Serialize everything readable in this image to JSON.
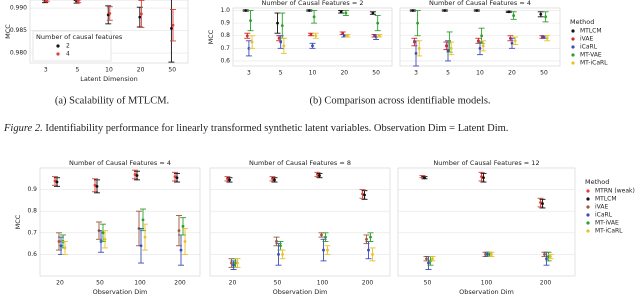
{
  "chart_data": [
    {
      "type": "errorbar",
      "ylabel": "MCC",
      "xlabel": "Latent Dimension",
      "categories": [
        "3",
        "5",
        "10",
        "20",
        "50"
      ],
      "ylim": [
        0.9778,
        0.9918
      ],
      "yticks": [
        {
          "value": 0.99,
          "label": "0.990"
        },
        0.985,
        {
          "value": 0.98,
          "label": "0.980"
        }
      ],
      "grid": true,
      "legend": "lower left",
      "legend_title": "Number of causal features",
      "series": [
        {
          "name": "2",
          "color": "#111111",
          "values": [
            0.9915,
            0.9914,
            0.9885,
            0.988,
            0.9855
          ],
          "errors": [
            0.0003,
            0.0003,
            0.002,
            0.0022,
            0.0075
          ]
        },
        {
          "name": "4",
          "color": "#e0403a",
          "values": [
            0.9916,
            0.9915,
            0.9888,
            0.9887,
            0.9862
          ],
          "errors": [
            0.0002,
            0.0003,
            0.0015,
            0.003,
            0.0035
          ]
        }
      ]
    },
    {
      "type": "errorbar",
      "title": "Number of Causal Features = 2",
      "ylabel": "MCC",
      "categories": [
        "3",
        "5",
        "10",
        "20",
        "50"
      ],
      "ylim": [
        0.56,
        1.02
      ],
      "yticks": [
        {
          "value": 1,
          "label": "1.0"
        },
        0.9,
        0.8,
        0.7,
        0.6
      ],
      "grid": true,
      "series": [
        {
          "name": "MTLCM",
          "color": "#111111",
          "values": [
            1.0,
            0.9,
            1.0,
            0.99,
            0.98
          ],
          "errors": [
            0.005,
            0.08,
            0.005,
            0.01,
            0.01
          ]
        },
        {
          "name": "iVAE",
          "color": "#d62728",
          "values": [
            0.8,
            0.78,
            0.81,
            0.82,
            0.8
          ],
          "errors": [
            0.02,
            0.02,
            0.01,
            0.01,
            0.01
          ]
        },
        {
          "name": "iCaRL",
          "color": "#3b4cc0",
          "values": [
            0.7,
            0.75,
            0.72,
            0.8,
            0.79
          ],
          "errors": [
            0.06,
            0.05,
            0.02,
            0.01,
            0.02
          ]
        },
        {
          "name": "MT-VAE",
          "color": "#2ca02c",
          "values": [
            0.92,
            0.88,
            0.95,
            0.98,
            0.9
          ],
          "errors": [
            0.08,
            0.1,
            0.05,
            0.02,
            0.06
          ]
        },
        {
          "name": "MT-iCaRL",
          "color": "#e6c229",
          "values": [
            0.75,
            0.72,
            0.8,
            0.8,
            0.8
          ],
          "errors": [
            0.05,
            0.06,
            0.02,
            0.01,
            0.01
          ]
        }
      ]
    },
    {
      "type": "errorbar",
      "title": "Number of Causal Features = 4",
      "sharey": true,
      "categories": [
        "3",
        "5",
        "10",
        "20",
        "50"
      ],
      "ylim": [
        0.56,
        1.02
      ],
      "yticks": [
        {
          "value": 1,
          "label": "1.0"
        },
        0.9,
        0.8,
        0.7,
        0.6
      ],
      "grid": true,
      "legend": "right",
      "legend_title": "Method",
      "series": [
        {
          "name": "MTLCM",
          "color": "#111111",
          "values": [
            1.0,
            1.0,
            1.0,
            0.99,
            0.97
          ],
          "errors": [
            0.005,
            0.005,
            0.005,
            0.005,
            0.02
          ]
        },
        {
          "name": "iVAE",
          "color": "#d62728",
          "values": [
            0.75,
            0.72,
            0.76,
            0.78,
            0.79
          ],
          "errors": [
            0.03,
            0.03,
            0.02,
            0.02,
            0.01
          ]
        },
        {
          "name": "iCaRL",
          "color": "#3b4cc0",
          "values": [
            0.66,
            0.68,
            0.7,
            0.74,
            0.79
          ],
          "errors": [
            0.1,
            0.08,
            0.05,
            0.04,
            0.01
          ]
        },
        {
          "name": "MT-VAE",
          "color": "#2ca02c",
          "values": [
            0.9,
            0.75,
            0.8,
            0.96,
            0.95
          ],
          "errors": [
            0.1,
            0.08,
            0.06,
            0.03,
            0.04
          ]
        },
        {
          "name": "MT-iCaRL",
          "color": "#e6c229",
          "values": [
            0.7,
            0.7,
            0.72,
            0.76,
            0.78
          ],
          "errors": [
            0.06,
            0.05,
            0.04,
            0.03,
            0.02
          ]
        }
      ]
    },
    {
      "type": "errorbar",
      "title": "Number of Causal Features = 4",
      "ylabel": "MCC",
      "xlabel": "Observation Dim",
      "categories": [
        "20",
        "50",
        "100",
        "200"
      ],
      "ylim": [
        0.5,
        1.0
      ],
      "yticks": [
        0.9,
        0.8,
        0.7,
        0.6
      ],
      "grid": true,
      "series": [
        {
          "name": "MTRN (weak)",
          "color": "#e0403a",
          "values": [
            0.94,
            0.92,
            0.97,
            0.96
          ],
          "errors": [
            0.02,
            0.03,
            0.02,
            0.02
          ]
        },
        {
          "name": "MTLCM",
          "color": "#111111",
          "values": [
            0.935,
            0.915,
            0.965,
            0.955
          ],
          "errors": [
            0.02,
            0.03,
            0.02,
            0.02
          ]
        },
        {
          "name": "iVAE",
          "color": "#9c5a3c",
          "values": [
            0.66,
            0.71,
            0.72,
            0.71
          ],
          "errors": [
            0.04,
            0.04,
            0.08,
            0.07
          ]
        },
        {
          "name": "iCaRL",
          "color": "#3b4cc0",
          "values": [
            0.64,
            0.66,
            0.64,
            0.62
          ],
          "errors": [
            0.04,
            0.05,
            0.08,
            0.07
          ]
        },
        {
          "name": "MT-iVAE",
          "color": "#2ca02c",
          "values": [
            0.66,
            0.7,
            0.76,
            0.73
          ],
          "errors": [
            0.03,
            0.04,
            0.05,
            0.04
          ]
        },
        {
          "name": "MT-iCaRL",
          "color": "#e6c229",
          "values": [
            0.63,
            0.67,
            0.68,
            0.66
          ],
          "errors": [
            0.03,
            0.04,
            0.06,
            0.06
          ]
        }
      ]
    },
    {
      "type": "errorbar",
      "title": "Number of Causal Features = 8",
      "xlabel": "Observation Dim",
      "sharey": true,
      "categories": [
        "20",
        "50",
        "100",
        "200"
      ],
      "ylim": [
        0.5,
        1.0
      ],
      "yticks": [
        0.9,
        0.8,
        0.7,
        0.6
      ],
      "grid": true,
      "series": [
        {
          "name": "MTRN (weak)",
          "color": "#e0403a",
          "values": [
            0.95,
            0.95,
            0.97,
            0.88
          ],
          "errors": [
            0.01,
            0.01,
            0.01,
            0.02
          ]
        },
        {
          "name": "MTLCM",
          "color": "#111111",
          "values": [
            0.945,
            0.945,
            0.965,
            0.875
          ],
          "errors": [
            0.01,
            0.01,
            0.01,
            0.02
          ]
        },
        {
          "name": "iVAE",
          "color": "#9c5a3c",
          "values": [
            0.56,
            0.66,
            0.69,
            0.67
          ],
          "errors": [
            0.02,
            0.02,
            0.01,
            0.02
          ]
        },
        {
          "name": "iCaRL",
          "color": "#3b4cc0",
          "values": [
            0.55,
            0.6,
            0.62,
            0.62
          ],
          "errors": [
            0.02,
            0.05,
            0.05,
            0.04
          ]
        },
        {
          "name": "MT-iVAE",
          "color": "#2ca02c",
          "values": [
            0.56,
            0.64,
            0.68,
            0.68
          ],
          "errors": [
            0.02,
            0.02,
            0.02,
            0.02
          ]
        },
        {
          "name": "MT-iCaRL",
          "color": "#e6c229",
          "values": [
            0.56,
            0.6,
            0.62,
            0.6
          ],
          "errors": [
            0.02,
            0.02,
            0.02,
            0.03
          ]
        }
      ]
    },
    {
      "type": "errorbar",
      "title": "Number of Causal Features = 12",
      "xlabel": "Observation Dim",
      "sharey": true,
      "categories": [
        "50",
        "100",
        "200"
      ],
      "ylim": [
        0.5,
        1.0
      ],
      "yticks": [
        0.9,
        0.8,
        0.7,
        0.6
      ],
      "grid": true,
      "legend": "right",
      "legend_title": "Method",
      "series": [
        {
          "name": "MTRN (weak)",
          "color": "#e0403a",
          "values": [
            0.96,
            0.96,
            0.84
          ],
          "errors": [
            0.005,
            0.02,
            0.02
          ]
        },
        {
          "name": "MTLCM",
          "color": "#111111",
          "values": [
            0.955,
            0.955,
            0.835
          ],
          "errors": [
            0.005,
            0.02,
            0.02
          ]
        },
        {
          "name": "iVAE",
          "color": "#9c5a3c",
          "values": [
            0.58,
            0.6,
            0.6
          ],
          "errors": [
            0.01,
            0.01,
            0.01
          ]
        },
        {
          "name": "iCaRL",
          "color": "#3b4cc0",
          "values": [
            0.56,
            0.6,
            0.58
          ],
          "errors": [
            0.03,
            0.01,
            0.03
          ]
        },
        {
          "name": "MT-iVAE",
          "color": "#2ca02c",
          "values": [
            0.57,
            0.6,
            0.59
          ],
          "errors": [
            0.02,
            0.01,
            0.02
          ]
        },
        {
          "name": "MT-iCaRL",
          "color": "#e6c229",
          "values": [
            0.58,
            0.6,
            0.59
          ],
          "errors": [
            0.01,
            0.01,
            0.01
          ]
        }
      ]
    }
  ],
  "captions": {
    "a": "(a) Scalability of MTLCM.",
    "b": "(b) Comparison across identifiable models."
  },
  "figure": {
    "label": "Figure 2.",
    "text": "Identifiability performance for linearly transformed synthetic latent variables. Observation Dim = Latent Dim."
  }
}
